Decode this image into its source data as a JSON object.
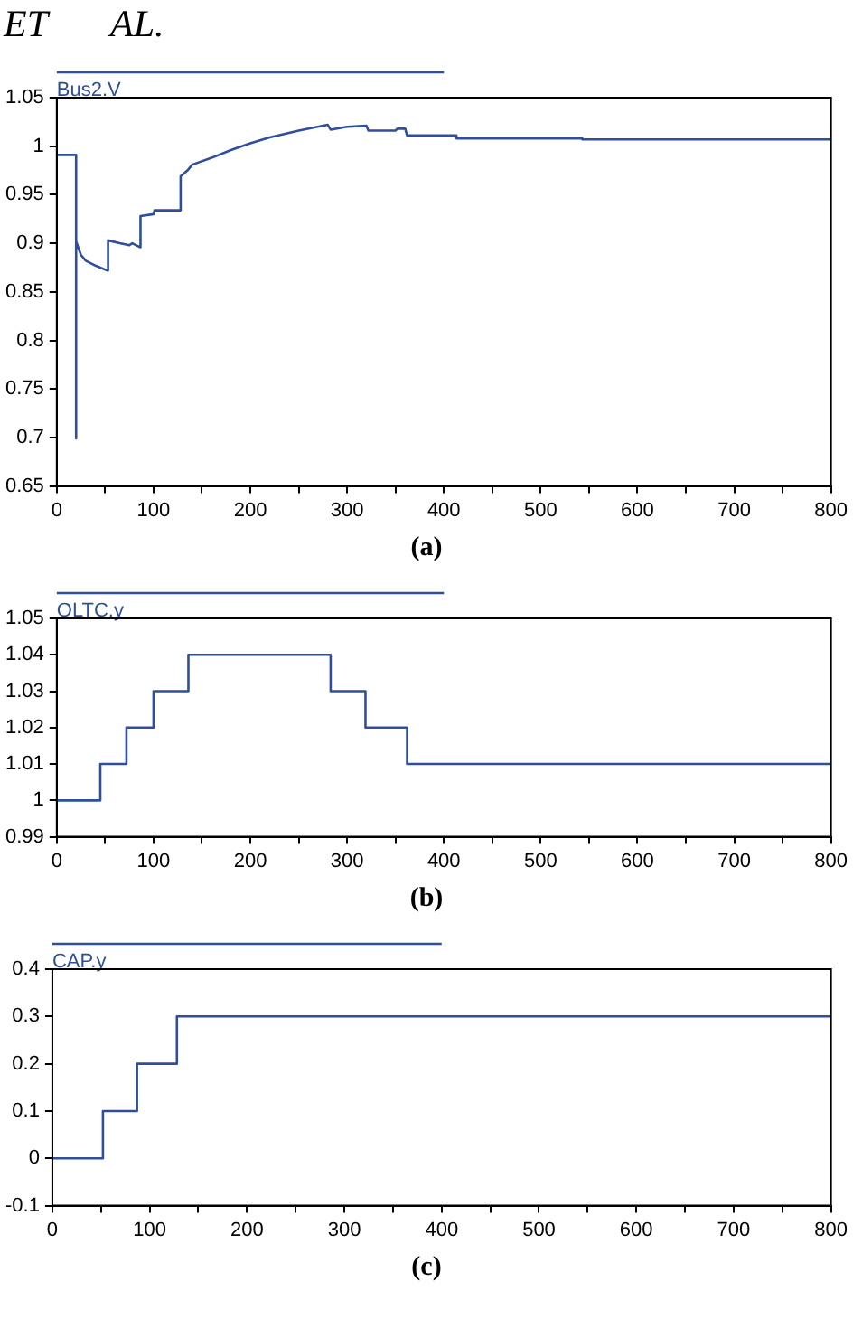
{
  "chart_data": [
    {
      "type": "line",
      "annotations": [
        "ET AL.",
        "(a)"
      ],
      "legend": "top left",
      "grid": false,
      "marker": "none",
      "line_style": "solid",
      "series": [
        {
          "name": "Bus2.V",
          "color": "#2f4f9a",
          "x": [
            0,
            20,
            20,
            20,
            20,
            25,
            30,
            40,
            52,
            53,
            53,
            65,
            75,
            78,
            86,
            86,
            87,
            100,
            101,
            127,
            128,
            135,
            140,
            160,
            180,
            200,
            220,
            250,
            280,
            283,
            300,
            320,
            322,
            350,
            352,
            360,
            362,
            412,
            413,
            543,
            543,
            800
          ],
          "values": [
            0.991,
            0.991,
            0.699,
            0.699,
            0.902,
            0.888,
            0.882,
            0.877,
            0.872,
            0.872,
            0.903,
            0.9,
            0.898,
            0.9,
            0.896,
            0.896,
            0.928,
            0.93,
            0.934,
            0.934,
            0.969,
            0.975,
            0.981,
            0.988,
            0.996,
            1.003,
            1.009,
            1.016,
            1.022,
            1.017,
            1.02,
            1.021,
            1.016,
            1.016,
            1.018,
            1.018,
            1.011,
            1.011,
            1.008,
            1.008,
            1.007,
            1.007
          ]
        }
      ],
      "xlim": [
        0,
        800
      ],
      "xticks": [
        0,
        {
          "value": 50,
          "label": null
        },
        100,
        {
          "value": 150,
          "label": null
        },
        200,
        {
          "value": 250,
          "label": null
        },
        300,
        {
          "value": 350,
          "label": null
        },
        400,
        {
          "value": 450,
          "label": null
        },
        500,
        {
          "value": 550,
          "label": null
        },
        600,
        {
          "value": 650,
          "label": null
        },
        700,
        {
          "value": 750,
          "label": null
        },
        800
      ],
      "ylim": [
        0.65,
        1.05
      ],
      "yticks": [
        0.65,
        0.7,
        0.75,
        0.8,
        0.85,
        0.9,
        0.95,
        1,
        1.05
      ]
    },
    {
      "type": "step",
      "annotations": [
        "(b)"
      ],
      "legend": "top left",
      "grid": false,
      "marker": "none",
      "line_style": "solid",
      "series": [
        {
          "name": "OLTC.y",
          "color": "#2f4f9a",
          "x": [
            0,
            45,
            72,
            100,
            136,
            283,
            319,
            362,
            800
          ],
          "values": [
            1,
            1.01,
            1.02,
            1.03,
            1.04,
            1.03,
            1.02,
            1.01,
            1.01
          ]
        }
      ],
      "xlim": [
        0,
        800
      ],
      "xticks": [
        0,
        {
          "value": 50,
          "label": null
        },
        100,
        {
          "value": 150,
          "label": null
        },
        200,
        {
          "value": 250,
          "label": null
        },
        300,
        {
          "value": 350,
          "label": null
        },
        400,
        {
          "value": 450,
          "label": null
        },
        500,
        {
          "value": 550,
          "label": null
        },
        600,
        {
          "value": 650,
          "label": null
        },
        700,
        {
          "value": 750,
          "label": null
        },
        800
      ],
      "ylim": [
        0.99,
        1.05
      ],
      "yticks": [
        0.99,
        1,
        1.01,
        1.02,
        1.03,
        1.04,
        1.05
      ]
    },
    {
      "type": "step",
      "annotations": [
        "(c)"
      ],
      "legend": "top left",
      "grid": false,
      "marker": "none",
      "line_style": "solid",
      "series": [
        {
          "name": "CAP.y",
          "color": "#2f4f9a",
          "x": [
            0,
            52,
            87,
            128,
            800
          ],
          "values": [
            0,
            0.1,
            0.2,
            0.3,
            0.3
          ]
        }
      ],
      "xlim": [
        0,
        800
      ],
      "xticks": [
        0,
        {
          "value": 50,
          "label": null
        },
        100,
        {
          "value": 150,
          "label": null
        },
        200,
        {
          "value": 250,
          "label": null
        },
        300,
        {
          "value": 350,
          "label": null
        },
        400,
        {
          "value": 450,
          "label": null
        },
        500,
        {
          "value": 550,
          "label": null
        },
        600,
        {
          "value": 650,
          "label": null
        },
        700,
        {
          "value": 750,
          "label": null
        },
        800
      ],
      "ylim": [
        -0.1,
        0.4
      ],
      "yticks": [
        -0.1,
        0,
        0.1,
        0.2,
        0.3,
        0.4
      ]
    }
  ]
}
